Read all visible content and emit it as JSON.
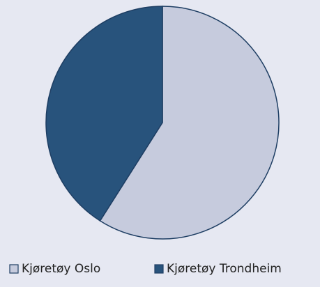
{
  "chart_data": {
    "type": "pie",
    "categories": [
      "Kjøretøy Oslo",
      "Kjøretøy Trondheim"
    ],
    "values": [
      59,
      41
    ],
    "colors": [
      "#c6cbdd",
      "#28537c"
    ],
    "legend": "bottom"
  }
}
